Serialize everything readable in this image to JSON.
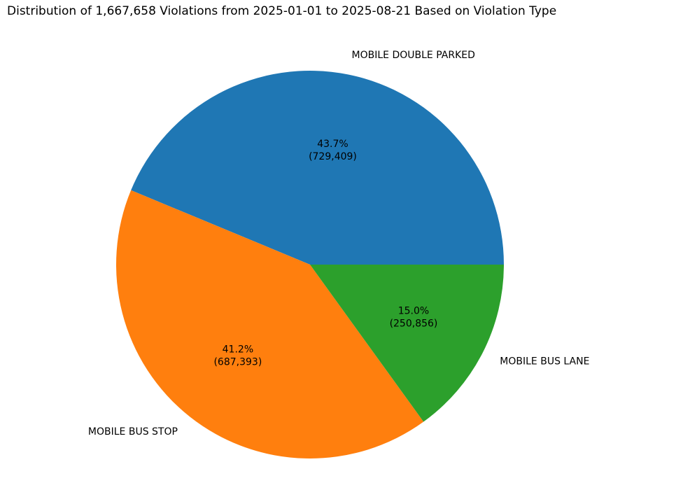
{
  "chart_data": {
    "type": "pie",
    "title": "Distribution of 1,667,658 Violations from 2025-01-01 to 2025-08-21 Based on Violation Type",
    "categories": [
      "MOBILE DOUBLE PARKED",
      "MOBILE BUS STOP",
      "MOBILE BUS LANE"
    ],
    "values": [
      729409,
      687393,
      250856
    ],
    "percent_labels": [
      "43.7%",
      "41.2%",
      "15.0%"
    ],
    "value_labels": [
      "(729,409)",
      "(687,393)",
      "(250,856)"
    ],
    "colors": [
      "#1f77b4",
      "#ff7f0e",
      "#2ca02c"
    ],
    "start_angle_deg": 0,
    "direction": "counterclockwise",
    "legend": "none"
  }
}
